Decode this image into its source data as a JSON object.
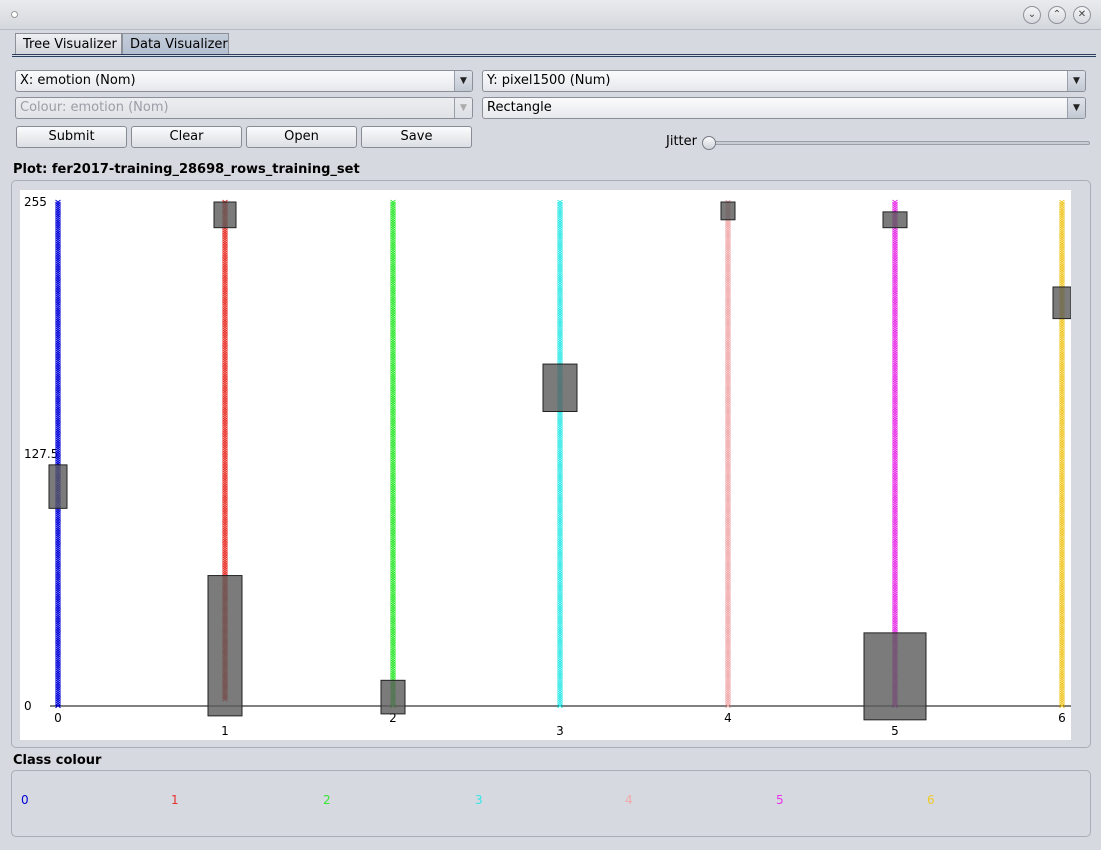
{
  "window": {
    "dot": "○"
  },
  "tabs": [
    {
      "label": "Tree Visualizer",
      "active": false
    },
    {
      "label": "Data Visualizer",
      "active": true
    }
  ],
  "controls": {
    "x_axis": "X: emotion (Nom)",
    "y_axis": "Y: pixel1500 (Num)",
    "colour": "Colour: emotion (Nom)",
    "shape": "Rectangle",
    "buttons": {
      "submit": "Submit",
      "clear": "Clear",
      "open": "Open",
      "save": "Save"
    },
    "jitter_label": "Jitter",
    "jitter_value": 0
  },
  "plot": {
    "title": "Plot: fer2017-training_28698_rows_training_set"
  },
  "legend": {
    "title": "Class colour",
    "items": [
      {
        "label": "0",
        "color": "#0000d8"
      },
      {
        "label": "1",
        "color": "#e8322a"
      },
      {
        "label": "2",
        "color": "#33e833"
      },
      {
        "label": "3",
        "color": "#33e8e8"
      },
      {
        "label": "4",
        "color": "#f0aaaa"
      },
      {
        "label": "5",
        "color": "#e833e8"
      },
      {
        "label": "6",
        "color": "#f0c82a"
      }
    ]
  },
  "chart_data": {
    "type": "scatter",
    "x_categories": [
      "0",
      "1",
      "2",
      "3",
      "4",
      "5",
      "6"
    ],
    "y_tick_labels": [
      "255",
      "127.5",
      "0"
    ],
    "ylim": [
      0,
      255
    ],
    "series": [
      {
        "category": "0",
        "y_min": 0,
        "y_max": 255,
        "box": [
          100,
          122
        ]
      },
      {
        "category": "1",
        "y_min": 3,
        "y_max": 255,
        "gap": [
          0,
          3
        ],
        "box": [
          -5,
          66
        ],
        "top_box": [
          242,
          255
        ]
      },
      {
        "category": "2",
        "y_min": 0,
        "y_max": 255,
        "box": [
          -4,
          13
        ]
      },
      {
        "category": "3",
        "y_min": 0,
        "y_max": 255,
        "box": [
          149,
          173
        ]
      },
      {
        "category": "4",
        "y_min": 0,
        "y_max": 255,
        "top_box": [
          246,
          255
        ]
      },
      {
        "category": "5",
        "y_min": 0,
        "y_max": 255,
        "box": [
          -7,
          37
        ],
        "top_box": [
          242,
          250
        ]
      },
      {
        "category": "6",
        "y_min": 0,
        "y_max": 255,
        "box": [
          196,
          212
        ]
      }
    ]
  }
}
